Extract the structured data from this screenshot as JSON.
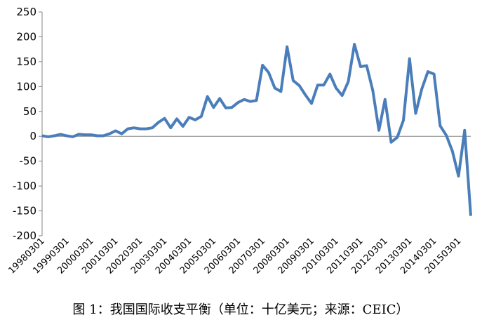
{
  "chart_data": {
    "type": "line",
    "caption": "图 1：我国国际收支平衡（单位：十亿美元；来源：CEIC）",
    "categories": [
      "19980301",
      null,
      null,
      null,
      "19990301",
      null,
      null,
      null,
      "20000301",
      null,
      null,
      null,
      "20010301",
      null,
      null,
      null,
      "20020301",
      null,
      null,
      null,
      "20030301",
      null,
      null,
      null,
      "20040301",
      null,
      null,
      null,
      "20050301",
      null,
      null,
      null,
      "20060301",
      null,
      null,
      null,
      "20070301",
      null,
      null,
      null,
      "20080301",
      null,
      null,
      null,
      "20090301",
      null,
      null,
      null,
      "20100301",
      null,
      null,
      null,
      "20110301",
      null,
      null,
      null,
      "20120301",
      null,
      null,
      null,
      "20130301",
      null,
      null,
      null,
      "20140301",
      null,
      null,
      null,
      "20150301",
      null,
      null
    ],
    "series": [
      {
        "color": "#4a7ebb",
        "values": [
          1,
          -1,
          1,
          4,
          1,
          -1,
          4,
          3,
          3,
          1,
          1,
          5,
          11,
          5,
          15,
          17,
          15,
          15,
          17,
          28,
          36,
          17,
          35,
          20,
          38,
          33,
          40,
          80,
          58,
          76,
          57,
          58,
          68,
          74,
          70,
          72,
          143,
          128,
          97,
          90,
          180,
          112,
          102,
          83,
          66,
          103,
          103,
          125,
          97,
          82,
          110,
          185,
          140,
          142,
          92,
          12,
          74,
          -12,
          -2,
          32,
          156,
          46,
          95,
          130,
          125,
          21,
          2,
          -30,
          -80,
          12,
          -160
        ]
      }
    ],
    "ylim": [
      -200,
      250
    ],
    "yticks": [
      -200,
      -150,
      -100,
      -50,
      0,
      50,
      100,
      150,
      200,
      250
    ]
  }
}
